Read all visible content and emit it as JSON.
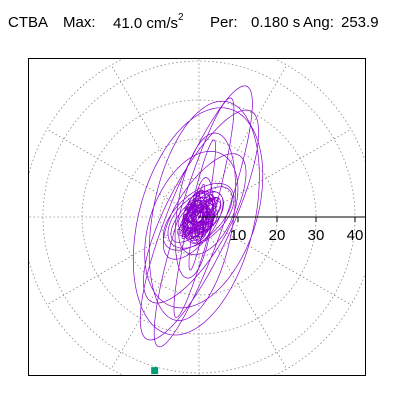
{
  "header": {
    "station": "CTBA",
    "max_label": "Max:",
    "max_value": "41.0 cm/s",
    "max_exponent": "2",
    "per_label": "Per:",
    "per_value": "0.180 s",
    "ang_label": "Ang:",
    "ang_value": "253.9"
  },
  "chart_data": {
    "type": "polar-hodogram",
    "title": "CTBA  Max: 41.0 cm/s2  Per: 0.180 s  Ang: 253.9",
    "radial_ticks": [
      10,
      20,
      30,
      40
    ],
    "radial_max": 45,
    "angular_spokes_deg": [
      0,
      30,
      60,
      90,
      120,
      150,
      180,
      210,
      240,
      270,
      300,
      330
    ],
    "grid": true,
    "max_value": 41.0,
    "max_angle_deg": 253.9,
    "trace_color": "#8800cc",
    "marker_color": "#009977",
    "grid_color": "#888888"
  }
}
